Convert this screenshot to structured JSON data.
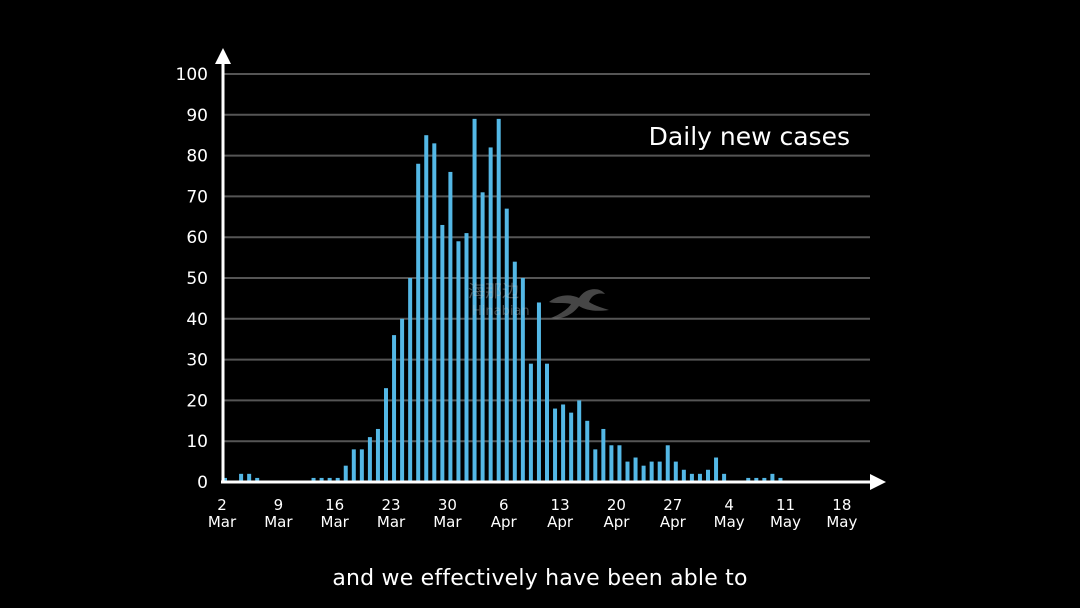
{
  "chart_data": {
    "type": "bar",
    "series_label": "Daily new cases",
    "bar_color": "#54b8e6",
    "ylim": [
      0,
      100
    ],
    "y_ticks": [
      0,
      10,
      20,
      30,
      40,
      50,
      60,
      70,
      80,
      90,
      100
    ],
    "x_start": "2 Mar",
    "x_tick_labels": [
      {
        "day": "2",
        "month": "Mar"
      },
      {
        "day": "9",
        "month": "Mar"
      },
      {
        "day": "16",
        "month": "Mar"
      },
      {
        "day": "23",
        "month": "Mar"
      },
      {
        "day": "30",
        "month": "Mar"
      },
      {
        "day": "6",
        "month": "Apr"
      },
      {
        "day": "13",
        "month": "Apr"
      },
      {
        "day": "20",
        "month": "Apr"
      },
      {
        "day": "27",
        "month": "Apr"
      },
      {
        "day": "4",
        "month": "May"
      },
      {
        "day": "11",
        "month": "May"
      },
      {
        "day": "18",
        "month": "May"
      }
    ],
    "values": [
      1,
      0,
      2,
      2,
      1,
      0,
      0,
      0,
      0,
      0,
      0,
      1,
      1,
      1,
      1,
      4,
      8,
      8,
      11,
      13,
      23,
      36,
      40,
      50,
      78,
      85,
      83,
      63,
      76,
      59,
      61,
      89,
      71,
      82,
      89,
      67,
      54,
      50,
      29,
      44,
      29,
      18,
      19,
      17,
      20,
      15,
      8,
      13,
      9,
      9,
      5,
      6,
      4,
      5,
      5,
      9,
      5,
      3,
      2,
      2,
      3,
      6,
      2,
      0,
      0,
      1,
      1,
      1,
      2,
      1
    ]
  },
  "caption": "and we effectively have been able to",
  "watermark": {
    "cn": "海那边",
    "en": "Hinabian"
  }
}
